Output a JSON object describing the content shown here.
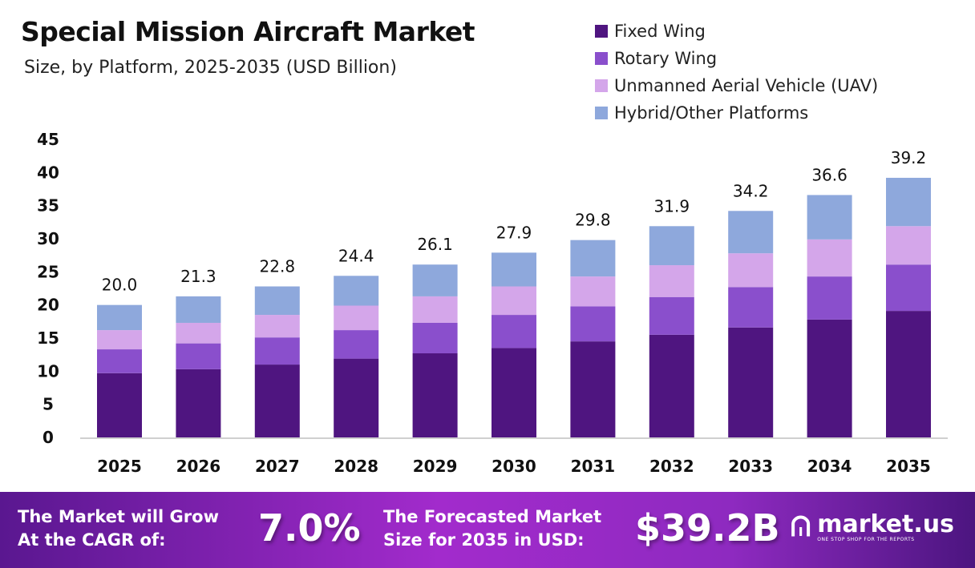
{
  "chart_data": {
    "type": "bar",
    "stacked": true,
    "title": "Special Mission Aircraft Market",
    "subtitle": "Size, by Platform, 2025-2035 (USD Billion)",
    "xlabel": "",
    "ylabel": "",
    "ylim": [
      0,
      45
    ],
    "yticks": [
      0,
      5,
      10,
      15,
      20,
      25,
      30,
      35,
      40,
      45
    ],
    "grid": false,
    "legend_position": "top-right",
    "categories": [
      "2025",
      "2026",
      "2027",
      "2028",
      "2029",
      "2030",
      "2031",
      "2032",
      "2033",
      "2034",
      "2035"
    ],
    "totals": [
      "20.0",
      "21.3",
      "22.8",
      "24.4",
      "26.1",
      "27.9",
      "29.8",
      "31.9",
      "34.2",
      "36.6",
      "39.2"
    ],
    "series": [
      {
        "name": "Fixed Wing",
        "color": "#4f1580",
        "values": [
          9.7,
          10.3,
          11.0,
          11.9,
          12.7,
          13.5,
          14.5,
          15.5,
          16.6,
          17.8,
          19.1
        ]
      },
      {
        "name": "Rotary Wing",
        "color": "#8a4fcc",
        "values": [
          3.6,
          3.9,
          4.1,
          4.3,
          4.6,
          5.0,
          5.3,
          5.7,
          6.1,
          6.5,
          7.0
        ]
      },
      {
        "name": "Unmanned Aerial Vehicle (UAV)",
        "color": "#d4a6ea",
        "values": [
          2.9,
          3.1,
          3.4,
          3.7,
          4.0,
          4.3,
          4.5,
          4.8,
          5.1,
          5.6,
          5.8
        ]
      },
      {
        "name": "Hybrid/Other Platforms",
        "color": "#8ea8dc",
        "values": [
          3.8,
          4.0,
          4.3,
          4.5,
          4.8,
          5.1,
          5.5,
          5.9,
          6.4,
          6.7,
          7.3
        ]
      }
    ]
  },
  "banner": {
    "cagr_label_line1": "The Market will Grow",
    "cagr_label_line2": "At the CAGR of:",
    "cagr_value": "7.0%",
    "forecast_label_line1": "The Forecasted Market",
    "forecast_label_line2": "Size for 2035 in USD:",
    "forecast_value": "$39.2B",
    "logo_name": "market.us",
    "logo_tagline": "ONE STOP SHOP FOR THE REPORTS"
  }
}
